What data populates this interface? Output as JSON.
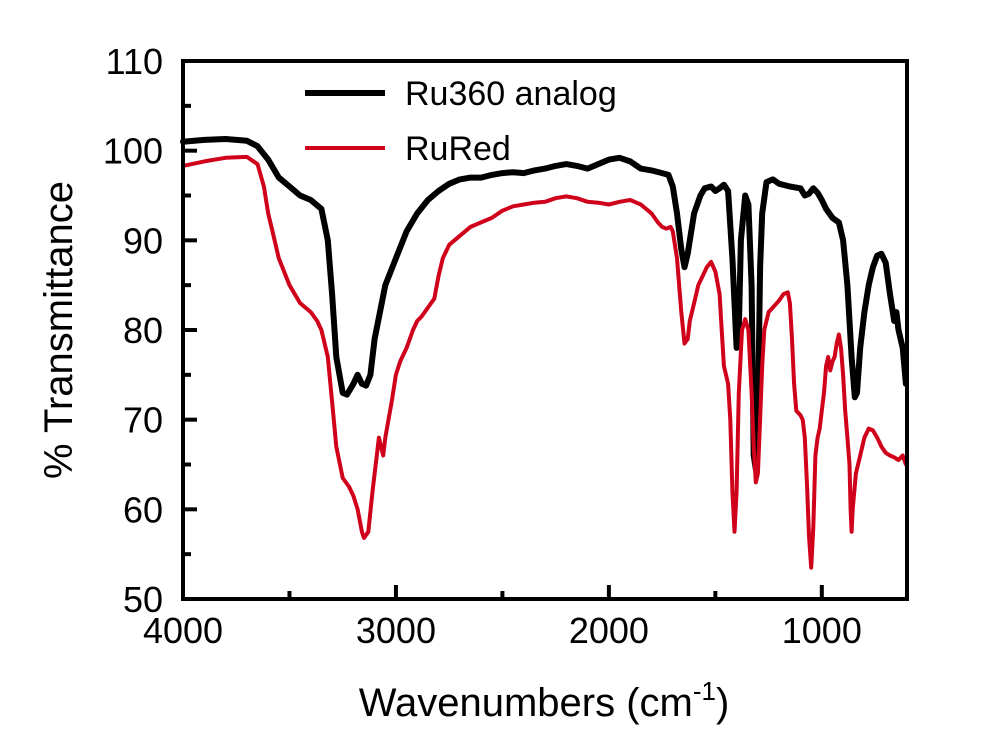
{
  "chart_data": {
    "type": "line",
    "title": "",
    "xlabel": "Wavenumbers (cm",
    "xlabel_sup": "-1",
    "xlabel_suffix": ")",
    "ylabel": "% Transmittance",
    "xlim": [
      4000,
      600
    ],
    "ylim": [
      50,
      110
    ],
    "x_reversed": true,
    "grid": false,
    "legend_position": "top-center",
    "x_major_ticks": [
      4000,
      3000,
      2000,
      1000
    ],
    "x_minor_ticks": [
      3500,
      2500,
      1500
    ],
    "y_major_ticks": [
      50,
      60,
      70,
      80,
      90,
      100,
      110
    ],
    "y_tick_step_minor": 5,
    "series": [
      {
        "name": "Ru360 analog",
        "color": "#000000",
        "points": [
          [
            4000,
            101
          ],
          [
            3900,
            101.2
          ],
          [
            3800,
            101.3
          ],
          [
            3700,
            101.1
          ],
          [
            3650,
            100.5
          ],
          [
            3600,
            99
          ],
          [
            3550,
            97
          ],
          [
            3500,
            96
          ],
          [
            3450,
            95
          ],
          [
            3400,
            94.5
          ],
          [
            3350,
            93.5
          ],
          [
            3320,
            90
          ],
          [
            3300,
            84
          ],
          [
            3280,
            77
          ],
          [
            3250,
            73
          ],
          [
            3230,
            72.8
          ],
          [
            3200,
            74
          ],
          [
            3180,
            75
          ],
          [
            3160,
            74
          ],
          [
            3140,
            73.8
          ],
          [
            3120,
            75
          ],
          [
            3100,
            79
          ],
          [
            3050,
            85
          ],
          [
            3000,
            88
          ],
          [
            2950,
            91
          ],
          [
            2900,
            93
          ],
          [
            2850,
            94.5
          ],
          [
            2800,
            95.5
          ],
          [
            2750,
            96.3
          ],
          [
            2700,
            96.8
          ],
          [
            2650,
            97
          ],
          [
            2600,
            97
          ],
          [
            2550,
            97.3
          ],
          [
            2500,
            97.5
          ],
          [
            2450,
            97.6
          ],
          [
            2400,
            97.5
          ],
          [
            2350,
            97.8
          ],
          [
            2300,
            98
          ],
          [
            2250,
            98.3
          ],
          [
            2200,
            98.5
          ],
          [
            2150,
            98.3
          ],
          [
            2100,
            98
          ],
          [
            2050,
            98.5
          ],
          [
            2000,
            99
          ],
          [
            1950,
            99.2
          ],
          [
            1900,
            98.8
          ],
          [
            1850,
            98
          ],
          [
            1800,
            97.8
          ],
          [
            1750,
            97.5
          ],
          [
            1720,
            97.3
          ],
          [
            1700,
            96
          ],
          [
            1680,
            93
          ],
          [
            1660,
            89
          ],
          [
            1645,
            87
          ],
          [
            1630,
            88.5
          ],
          [
            1600,
            93
          ],
          [
            1570,
            95
          ],
          [
            1550,
            95.8
          ],
          [
            1520,
            96
          ],
          [
            1500,
            95.5
          ],
          [
            1480,
            95.8
          ],
          [
            1460,
            96.2
          ],
          [
            1440,
            95.5
          ],
          [
            1420,
            88
          ],
          [
            1400,
            78
          ],
          [
            1390,
            80
          ],
          [
            1380,
            90
          ],
          [
            1360,
            95
          ],
          [
            1345,
            94
          ],
          [
            1330,
            85
          ],
          [
            1320,
            66
          ],
          [
            1310,
            64.5
          ],
          [
            1300,
            70
          ],
          [
            1290,
            87
          ],
          [
            1280,
            93
          ],
          [
            1260,
            96.5
          ],
          [
            1230,
            96.8
          ],
          [
            1200,
            96.3
          ],
          [
            1150,
            96
          ],
          [
            1100,
            95.8
          ],
          [
            1080,
            95
          ],
          [
            1060,
            95.2
          ],
          [
            1040,
            95.8
          ],
          [
            1020,
            95.3
          ],
          [
            1000,
            94.5
          ],
          [
            980,
            93.5
          ],
          [
            950,
            92.5
          ],
          [
            920,
            92
          ],
          [
            900,
            90
          ],
          [
            880,
            85
          ],
          [
            860,
            77
          ],
          [
            845,
            72.5
          ],
          [
            835,
            73
          ],
          [
            820,
            78
          ],
          [
            800,
            82
          ],
          [
            780,
            85
          ],
          [
            760,
            87
          ],
          [
            740,
            88.3
          ],
          [
            720,
            88.5
          ],
          [
            700,
            87.5
          ],
          [
            680,
            84
          ],
          [
            660,
            81
          ],
          [
            650,
            82
          ],
          [
            640,
            80
          ],
          [
            620,
            78
          ],
          [
            605,
            74
          ]
        ]
      },
      {
        "name": "RuRed",
        "color": "#d0021b",
        "points": [
          [
            4000,
            98.3
          ],
          [
            3900,
            98.8
          ],
          [
            3800,
            99.2
          ],
          [
            3700,
            99.3
          ],
          [
            3650,
            98.5
          ],
          [
            3620,
            96
          ],
          [
            3600,
            93
          ],
          [
            3570,
            90
          ],
          [
            3550,
            88
          ],
          [
            3500,
            85
          ],
          [
            3450,
            83
          ],
          [
            3400,
            82
          ],
          [
            3370,
            81
          ],
          [
            3350,
            80
          ],
          [
            3320,
            77
          ],
          [
            3300,
            72
          ],
          [
            3280,
            67
          ],
          [
            3250,
            63.5
          ],
          [
            3220,
            62.5
          ],
          [
            3200,
            61.5
          ],
          [
            3180,
            60
          ],
          [
            3160,
            57.5
          ],
          [
            3150,
            56.8
          ],
          [
            3130,
            57.5
          ],
          [
            3110,
            62
          ],
          [
            3090,
            66
          ],
          [
            3080,
            68
          ],
          [
            3070,
            67
          ],
          [
            3060,
            66
          ],
          [
            3050,
            68
          ],
          [
            3020,
            72
          ],
          [
            3000,
            75
          ],
          [
            2980,
            76.5
          ],
          [
            2950,
            78
          ],
          [
            2920,
            80
          ],
          [
            2900,
            81
          ],
          [
            2880,
            81.5
          ],
          [
            2850,
            82.5
          ],
          [
            2820,
            83.5
          ],
          [
            2800,
            86
          ],
          [
            2780,
            88
          ],
          [
            2750,
            89.5
          ],
          [
            2700,
            90.5
          ],
          [
            2650,
            91.5
          ],
          [
            2600,
            92
          ],
          [
            2550,
            92.5
          ],
          [
            2500,
            93.3
          ],
          [
            2450,
            93.8
          ],
          [
            2400,
            94
          ],
          [
            2350,
            94.2
          ],
          [
            2300,
            94.3
          ],
          [
            2250,
            94.7
          ],
          [
            2200,
            94.9
          ],
          [
            2150,
            94.7
          ],
          [
            2100,
            94.3
          ],
          [
            2050,
            94.2
          ],
          [
            2000,
            94
          ],
          [
            1950,
            94.3
          ],
          [
            1900,
            94.5
          ],
          [
            1850,
            94
          ],
          [
            1800,
            93
          ],
          [
            1770,
            92
          ],
          [
            1750,
            91.5
          ],
          [
            1730,
            91.3
          ],
          [
            1710,
            91.5
          ],
          [
            1700,
            91
          ],
          [
            1680,
            88
          ],
          [
            1660,
            82
          ],
          [
            1645,
            78.5
          ],
          [
            1630,
            79
          ],
          [
            1620,
            81
          ],
          [
            1600,
            83
          ],
          [
            1580,
            85
          ],
          [
            1560,
            86
          ],
          [
            1540,
            87
          ],
          [
            1520,
            87.6
          ],
          [
            1500,
            86.5
          ],
          [
            1480,
            84
          ],
          [
            1470,
            80
          ],
          [
            1460,
            76
          ],
          [
            1450,
            75
          ],
          [
            1440,
            74
          ],
          [
            1430,
            70
          ],
          [
            1420,
            62
          ],
          [
            1410,
            57.5
          ],
          [
            1400,
            62
          ],
          [
            1390,
            73
          ],
          [
            1375,
            80
          ],
          [
            1360,
            81.2
          ],
          [
            1345,
            80
          ],
          [
            1330,
            73
          ],
          [
            1320,
            67
          ],
          [
            1310,
            63
          ],
          [
            1300,
            64
          ],
          [
            1290,
            70
          ],
          [
            1280,
            76
          ],
          [
            1270,
            80
          ],
          [
            1250,
            82
          ],
          [
            1230,
            82.5
          ],
          [
            1200,
            83.3
          ],
          [
            1180,
            84
          ],
          [
            1160,
            84.2
          ],
          [
            1150,
            83
          ],
          [
            1140,
            79
          ],
          [
            1130,
            74
          ],
          [
            1120,
            71
          ],
          [
            1100,
            70.5
          ],
          [
            1090,
            70
          ],
          [
            1080,
            68
          ],
          [
            1070,
            63
          ],
          [
            1060,
            57
          ],
          [
            1050,
            53.5
          ],
          [
            1040,
            58
          ],
          [
            1030,
            66
          ],
          [
            1020,
            68
          ],
          [
            1010,
            69
          ],
          [
            1000,
            71
          ],
          [
            990,
            73
          ],
          [
            980,
            76
          ],
          [
            970,
            77
          ],
          [
            960,
            75.5
          ],
          [
            950,
            76.5
          ],
          [
            940,
            77
          ],
          [
            930,
            78.5
          ],
          [
            920,
            79.5
          ],
          [
            910,
            78
          ],
          [
            900,
            75
          ],
          [
            890,
            71
          ],
          [
            880,
            68
          ],
          [
            870,
            65
          ],
          [
            865,
            60
          ],
          [
            860,
            57.5
          ],
          [
            855,
            60
          ],
          [
            840,
            64
          ],
          [
            820,
            66
          ],
          [
            800,
            68
          ],
          [
            780,
            69
          ],
          [
            760,
            68.8
          ],
          [
            740,
            68
          ],
          [
            720,
            67
          ],
          [
            700,
            66.3
          ],
          [
            680,
            66
          ],
          [
            660,
            65.8
          ],
          [
            640,
            65.5
          ],
          [
            620,
            66
          ],
          [
            605,
            65
          ]
        ]
      }
    ]
  }
}
